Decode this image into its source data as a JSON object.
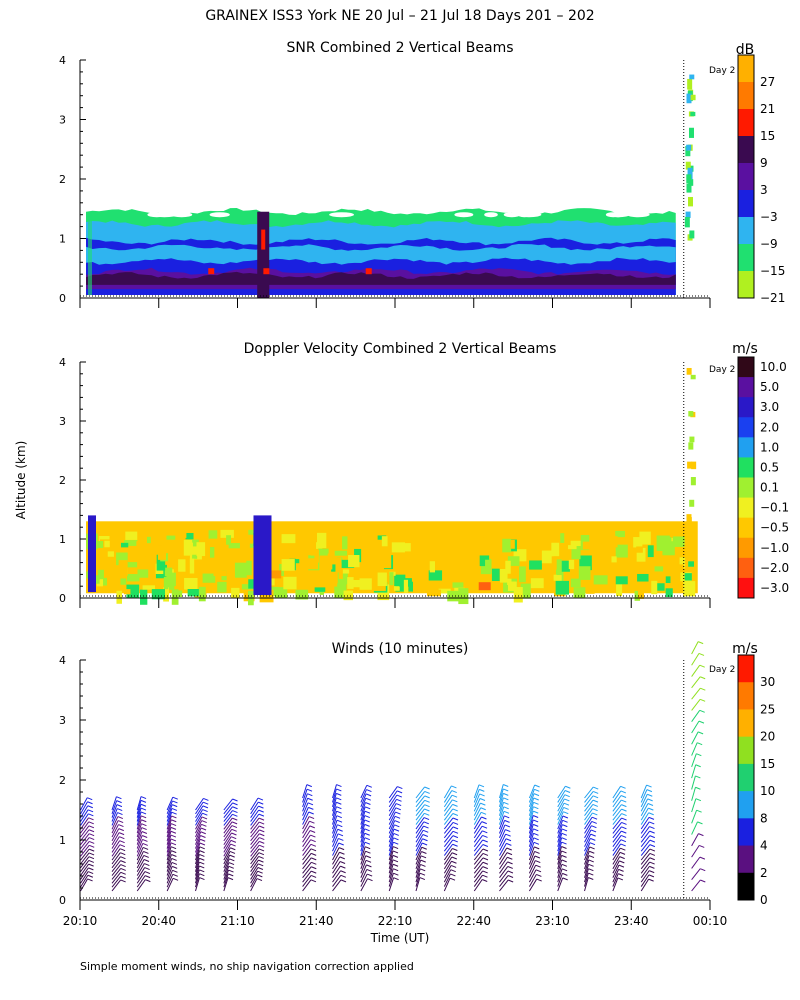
{
  "figure": {
    "title": "GRAINEX ISS3 York NE  20 Jul – 21 Jul 18 Days 201 – 202",
    "ylabel": "Altitude (km)",
    "xlabel": "Time (UT)",
    "footnote": "Simple moment winds, no ship navigation correction applied",
    "day_marker_label": "Day 2"
  },
  "chart_data": [
    {
      "type": "heatmap",
      "title": "SNR Combined 2 Vertical Beams",
      "unit": "dB",
      "ylim": [
        0,
        4
      ],
      "y_ticks": [
        "0",
        "1",
        "2",
        "3",
        "4"
      ],
      "x_ticks": [
        "20:10",
        "20:40",
        "21:10",
        "21:40",
        "22:10",
        "22:40",
        "23:10",
        "23:40",
        "00:10"
      ],
      "x_range_hours": [
        20.1667,
        24.1667
      ],
      "day_boundary_hour": 24.0,
      "colorbar": {
        "labels": [
          "27",
          "21",
          "15",
          "9",
          "3",
          "−3",
          "−9",
          "−15",
          "−21"
        ],
        "colors": [
          "#ffb000",
          "#ff7a00",
          "#ff1a00",
          "#3a0a50",
          "#5a10a0",
          "#1a20e0",
          "#2fb4f0",
          "#20e070",
          "#b0f020"
        ]
      },
      "data_top_km": 1.45
    },
    {
      "type": "heatmap",
      "title": "Doppler Velocity Combined 2 Vertical Beams",
      "unit": "m/s",
      "ylim": [
        0,
        4
      ],
      "y_ticks": [
        "0",
        "1",
        "2",
        "3",
        "4"
      ],
      "x_range_hours": [
        20.1667,
        24.1667
      ],
      "day_boundary_hour": 24.0,
      "colorbar": {
        "labels": [
          "10.0",
          "5.0",
          "3.0",
          "2.0",
          "1.0",
          "0.5",
          "0.1",
          "−0.1",
          "−0.5",
          "−1.0",
          "−2.0",
          "−3.0"
        ],
        "colors": [
          "#300818",
          "#5a10a0",
          "#2a18c8",
          "#1a40f0",
          "#20a0f0",
          "#20e060",
          "#a0f030",
          "#f0f020",
          "#ffc800",
          "#ff9a00",
          "#ff6010",
          "#ff1010"
        ]
      },
      "data_top_km": 1.3
    },
    {
      "type": "scatter",
      "title": "Winds (10 minutes)",
      "unit": "m/s",
      "ylim": [
        0,
        4
      ],
      "y_ticks": [
        "0",
        "1",
        "2",
        "3",
        "4"
      ],
      "x_range_hours": [
        20.1667,
        24.1667
      ],
      "day_boundary_hour": 24.0,
      "colorbar": {
        "labels": [
          "30",
          "25",
          "20",
          "15",
          "10",
          "8",
          "4",
          "2",
          "0"
        ],
        "colors": [
          "#ff1a00",
          "#ff7a00",
          "#ffb000",
          "#90e020",
          "#20d070",
          "#20a0f0",
          "#1a20e0",
          "#5a1080",
          "#000000"
        ]
      },
      "profile_times_hours": [
        20.17,
        20.37,
        20.53,
        20.72,
        20.9,
        21.08,
        21.25,
        21.58,
        21.77,
        21.95,
        22.13,
        22.3,
        22.48,
        22.67,
        22.83,
        23.02,
        23.2,
        23.37,
        23.55,
        23.73,
        24.05
      ]
    }
  ]
}
